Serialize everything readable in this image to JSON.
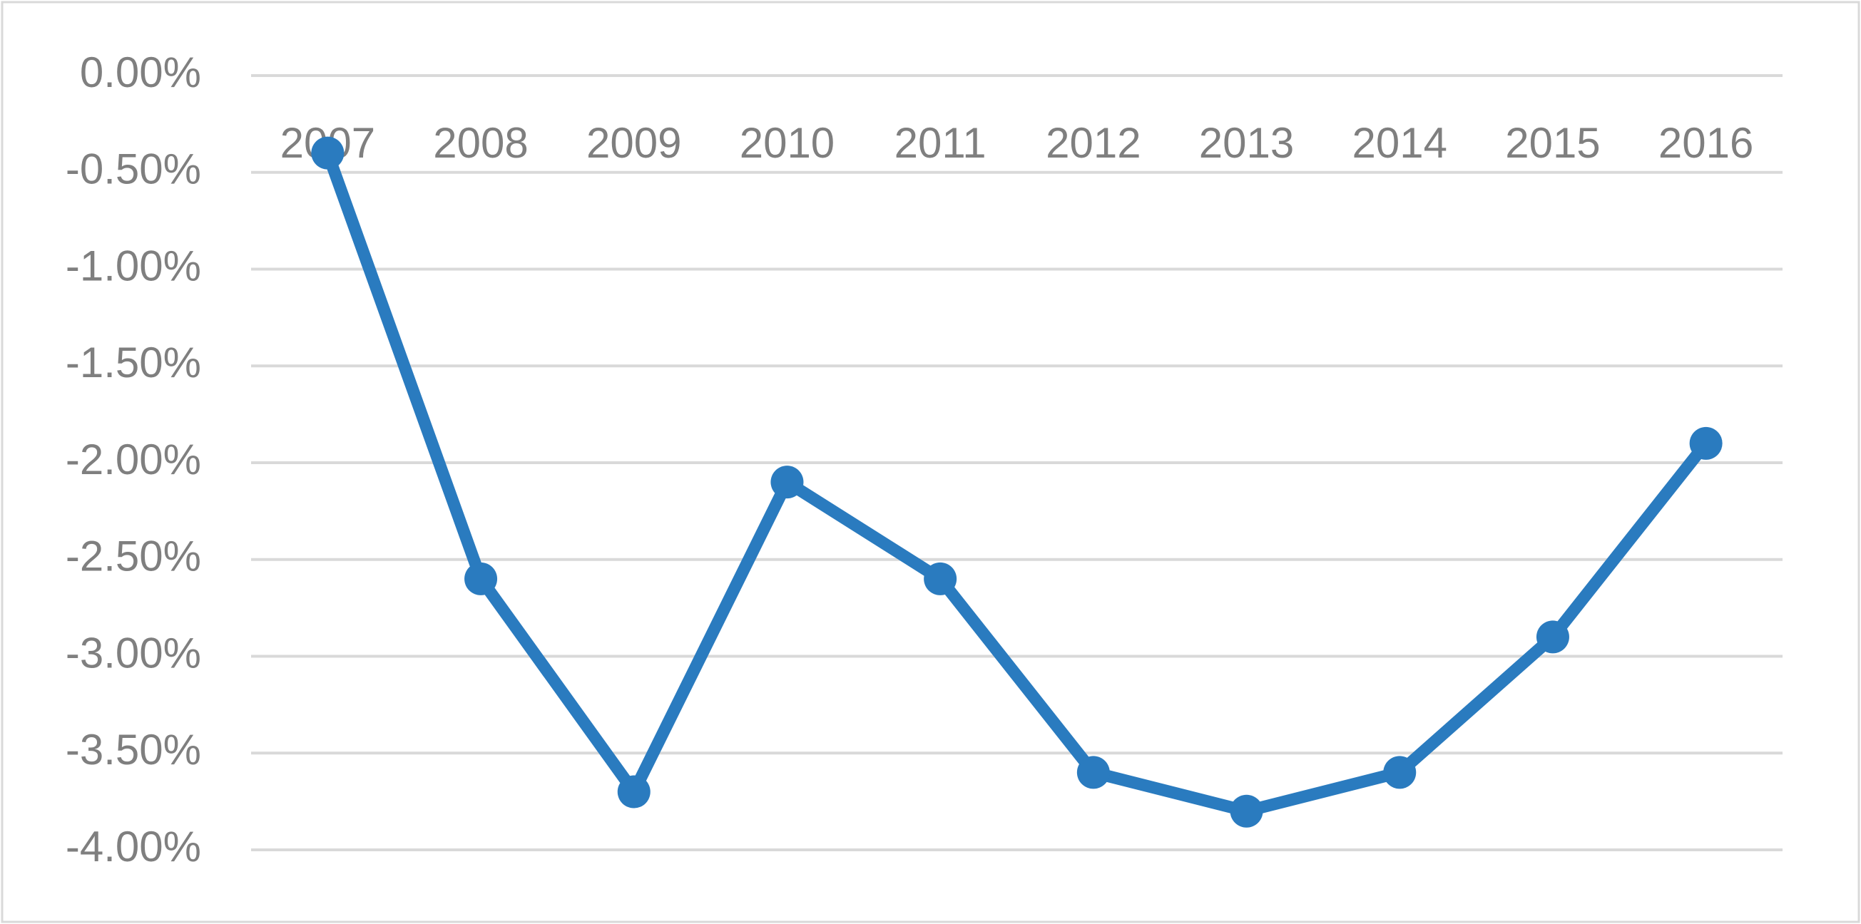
{
  "chart_data": {
    "type": "line",
    "categories": [
      "2007",
      "2008",
      "2009",
      "2010",
      "2011",
      "2012",
      "2013",
      "2014",
      "2015",
      "2016"
    ],
    "values": [
      -0.4,
      -2.6,
      -3.7,
      -2.1,
      -2.6,
      -3.6,
      -3.8,
      -3.6,
      -2.9,
      -1.9
    ],
    "color": "#2a7bbf",
    "ylim": [
      -4,
      0
    ],
    "yticks": [
      {
        "value": 0,
        "label": "0.00%"
      },
      {
        "value": -0.5,
        "label": "-0.50%"
      },
      {
        "value": -1,
        "label": "-1.00%"
      },
      {
        "value": -1.5,
        "label": "-1.50%"
      },
      {
        "value": -2,
        "label": "-2.00%"
      },
      {
        "value": -2.5,
        "label": "-2.50%"
      },
      {
        "value": -3,
        "label": "-3.00%"
      },
      {
        "value": -3.5,
        "label": "-3.50%"
      },
      {
        "value": -4,
        "label": "-4.00%"
      }
    ],
    "grid": true
  }
}
